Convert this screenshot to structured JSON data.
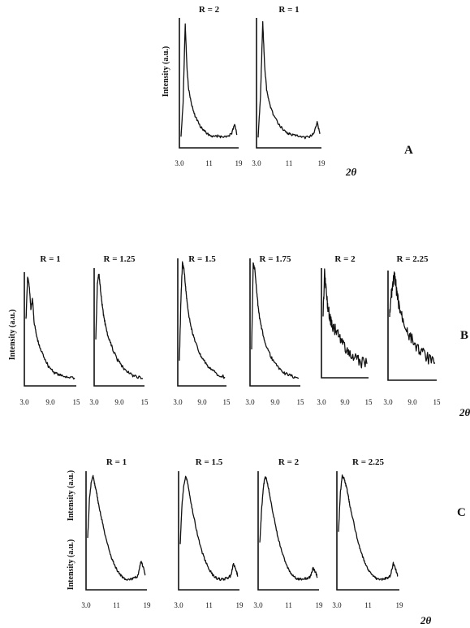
{
  "chart_data": [
    {
      "type": "line",
      "panel_label": "A",
      "ylabel": "Intensity (a.u.)",
      "xlabel": "2θ",
      "x_ticks": [
        "3.0",
        "11",
        "19"
      ],
      "xlim": [
        3,
        19
      ],
      "series": [
        {
          "name": "R = 2",
          "x": [
            3.0,
            3.6,
            4.2,
            4.7,
            5.2,
            6.0,
            7.0,
            8.5,
            10.0,
            11.0,
            12.0,
            13.5,
            15.0,
            16.5,
            17.5,
            18.3,
            19.0
          ],
          "y": [
            8,
            35,
            98,
            62,
            45,
            33,
            24,
            16,
            11,
            9,
            8,
            8,
            7,
            8,
            10,
            18,
            9
          ]
        },
        {
          "name": "R = 1",
          "x": [
            3.0,
            3.6,
            4.2,
            4.7,
            5.2,
            6.0,
            7.0,
            8.5,
            10.0,
            11.0,
            12.0,
            13.5,
            15.0,
            16.5,
            17.5,
            18.3,
            19.0
          ],
          "y": [
            8,
            40,
            100,
            64,
            46,
            34,
            25,
            17,
            12,
            10,
            9,
            8,
            7,
            8,
            11,
            20,
            10
          ]
        }
      ]
    },
    {
      "type": "line",
      "panel_label": "B",
      "ylabel": "Intensity (a.u.)",
      "xlabel": "2θ",
      "x_ticks": [
        "3.0",
        "9.0",
        "15"
      ],
      "xlim": [
        3,
        15
      ],
      "series": [
        {
          "name": "R = 1",
          "x": [
            3.0,
            3.4,
            3.8,
            4.2,
            4.6,
            5.0,
            5.6,
            6.4,
            7.5,
            8.5,
            10.0,
            11.5,
            13.0,
            15.0
          ],
          "y": [
            60,
            100,
            92,
            70,
            80,
            58,
            45,
            34,
            25,
            17,
            11,
            8,
            7,
            6
          ]
        },
        {
          "name": "R = 1.25",
          "x": [
            3.0,
            3.4,
            3.8,
            4.2,
            4.6,
            5.0,
            5.6,
            6.4,
            7.5,
            8.5,
            10.0,
            11.5,
            13.0,
            15.0
          ],
          "y": [
            40,
            90,
            100,
            85,
            72,
            62,
            50,
            40,
            30,
            22,
            15,
            10,
            7,
            5
          ]
        },
        {
          "name": "R = 1.5",
          "x": [
            3.0,
            3.4,
            3.8,
            4.2,
            4.6,
            5.0,
            5.6,
            6.4,
            7.5,
            8.5,
            10.0,
            11.5,
            13.0,
            15.0
          ],
          "y": [
            20,
            70,
            100,
            95,
            82,
            68,
            55,
            43,
            32,
            24,
            17,
            12,
            8,
            6
          ]
        },
        {
          "name": "R = 1.75",
          "x": [
            3.0,
            3.4,
            3.8,
            4.2,
            4.6,
            5.0,
            5.6,
            6.4,
            7.5,
            8.5,
            10.0,
            11.5,
            13.0,
            15.0
          ],
          "y": [
            30,
            100,
            95,
            80,
            66,
            55,
            45,
            35,
            26,
            19,
            13,
            9,
            7,
            5
          ]
        },
        {
          "name": "R = 2",
          "x": [
            3.0,
            3.4,
            3.8,
            4.2,
            4.6,
            5.0,
            5.6,
            6.4,
            7.5,
            8.5,
            10.0,
            11.5,
            13.0,
            15.0
          ],
          "y": [
            55,
            100,
            85,
            70,
            62,
            55,
            48,
            45,
            38,
            30,
            24,
            18,
            14,
            12
          ]
        },
        {
          "name": "R = 2.25",
          "x": [
            3.0,
            3.4,
            3.8,
            4.2,
            4.6,
            5.0,
            5.6,
            6.4,
            7.5,
            8.5,
            10.0,
            11.5,
            13.0,
            15.0
          ],
          "y": [
            60,
            80,
            90,
            100,
            92,
            80,
            68,
            58,
            48,
            40,
            32,
            26,
            20,
            15
          ]
        }
      ]
    },
    {
      "type": "line",
      "panel_label": "C",
      "ylabel": "Intensity (a.u.)",
      "xlabel": "2θ",
      "x_ticks": [
        "3.0",
        "11",
        "19"
      ],
      "xlim": [
        3,
        19
      ],
      "series": [
        {
          "name": "R = 1",
          "x": [
            3.0,
            3.5,
            4.0,
            4.5,
            5.0,
            5.5,
            6.0,
            7.0,
            8.0,
            9.0,
            10.0,
            11.0,
            12.0,
            13.0,
            14.0,
            15.0,
            16.0,
            17.0,
            17.8,
            18.5,
            19.0
          ],
          "y": [
            45,
            80,
            95,
            100,
            92,
            85,
            75,
            60,
            45,
            33,
            24,
            17,
            12,
            9,
            8,
            8,
            9,
            11,
            24,
            18,
            12
          ]
        },
        {
          "name": "R = 1.5",
          "x": [
            3.0,
            3.5,
            4.0,
            4.5,
            5.0,
            5.5,
            6.0,
            7.0,
            8.0,
            9.0,
            10.0,
            11.0,
            12.0,
            13.0,
            14.0,
            15.0,
            16.0,
            17.0,
            17.8,
            18.5,
            19.0
          ],
          "y": [
            40,
            75,
            92,
            100,
            95,
            86,
            76,
            60,
            45,
            33,
            24,
            17,
            12,
            9,
            8,
            8,
            9,
            11,
            22,
            16,
            11
          ]
        },
        {
          "name": "R = 2",
          "x": [
            3.0,
            3.5,
            4.0,
            4.5,
            5.0,
            5.5,
            6.0,
            7.0,
            8.0,
            9.0,
            10.0,
            11.0,
            12.0,
            13.0,
            14.0,
            15.0,
            16.0,
            17.0,
            17.8,
            18.5,
            19.0
          ],
          "y": [
            40,
            70,
            90,
            100,
            96,
            88,
            78,
            62,
            46,
            34,
            24,
            17,
            12,
            9,
            8,
            8,
            9,
            10,
            18,
            14,
            10
          ]
        },
        {
          "name": "R = 2.25",
          "x": [
            3.0,
            3.5,
            4.0,
            4.5,
            5.0,
            5.5,
            6.0,
            7.0,
            8.0,
            9.0,
            10.0,
            11.0,
            12.0,
            13.0,
            14.0,
            15.0,
            16.0,
            17.0,
            17.8,
            18.5,
            19.0
          ],
          "y": [
            50,
            85,
            100,
            98,
            92,
            85,
            75,
            60,
            45,
            33,
            24,
            17,
            12,
            9,
            8,
            8,
            9,
            11,
            22,
            16,
            11
          ]
        }
      ]
    }
  ]
}
